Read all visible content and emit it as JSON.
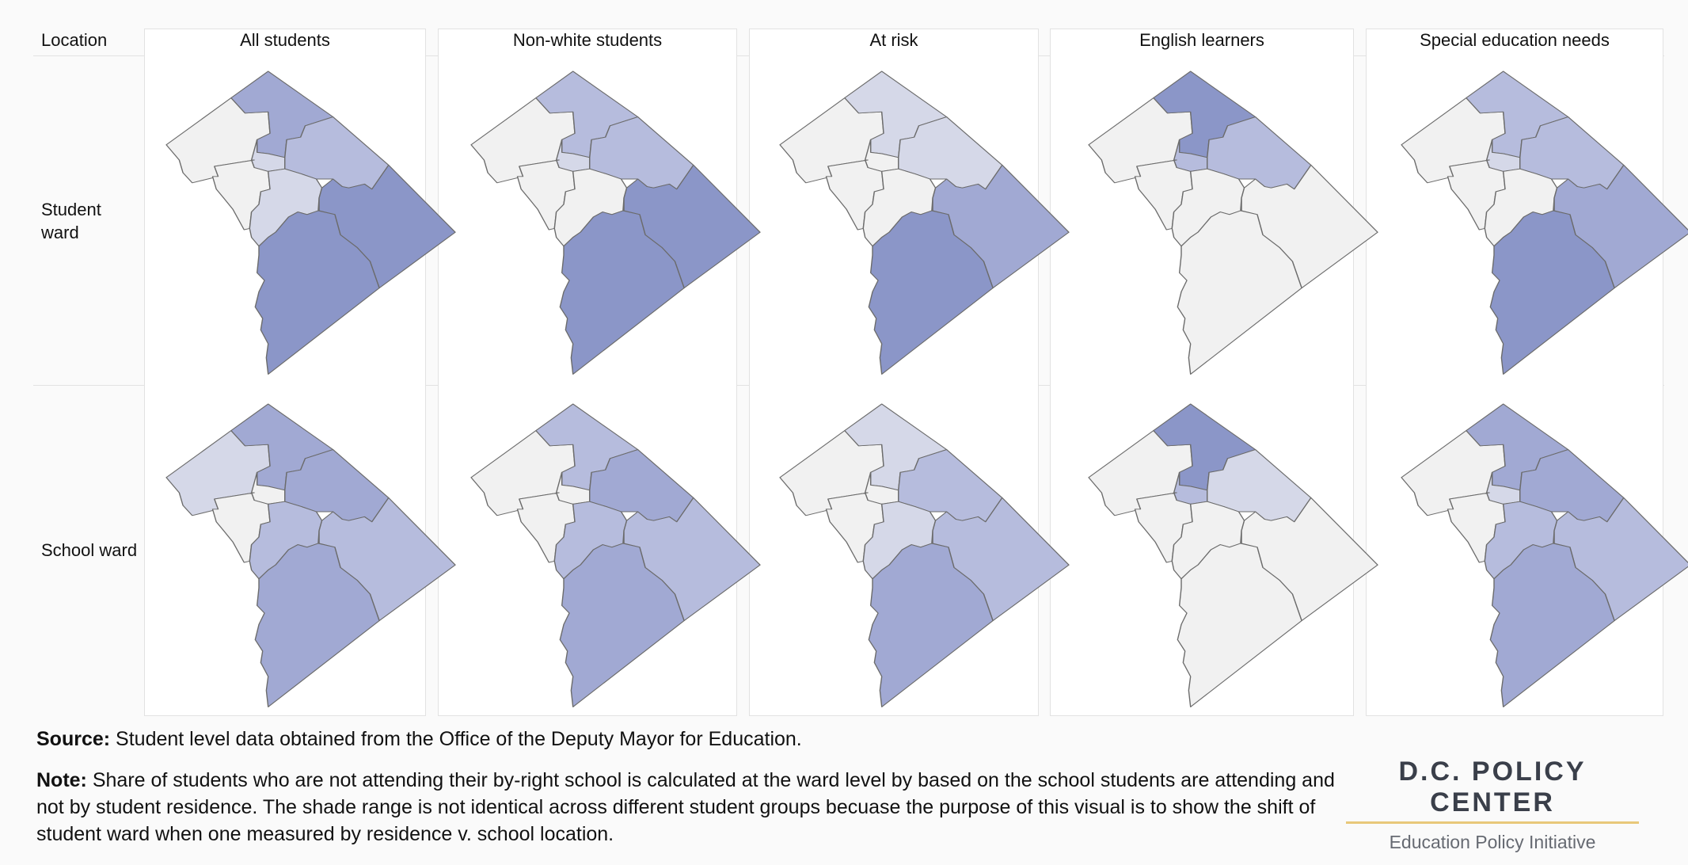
{
  "header": {
    "location_label": "Location",
    "columns": [
      "All students",
      "Non-white students",
      "At risk",
      "English learners",
      "Special education needs"
    ]
  },
  "rows": [
    {
      "label": "Student\nward"
    },
    {
      "label": "School ward"
    }
  ],
  "colors": {
    "level0": "#f1f1f1",
    "level1": "#d5d8e8",
    "level2": "#b6bcdd",
    "level3": "#a1a9d3",
    "level4": "#8b96c8",
    "border": "#6b6b6b"
  },
  "map_shading": [
    [
      {
        "northwest": 0,
        "north": 3,
        "center": 1,
        "northeast": 2,
        "west_central": 0,
        "south_central": 1,
        "east": 4,
        "southeast": 4
      },
      {
        "northwest": 0,
        "north": 2,
        "center": 1,
        "northeast": 2,
        "west_central": 0,
        "south_central": 0,
        "east": 4,
        "southeast": 4
      },
      {
        "northwest": 0,
        "north": 1,
        "center": 0,
        "northeast": 1,
        "west_central": 0,
        "south_central": 0,
        "east": 3,
        "southeast": 4
      },
      {
        "northwest": 0,
        "north": 4,
        "center": 2,
        "northeast": 2,
        "west_central": 0,
        "south_central": 0,
        "east": 0,
        "southeast": 0
      },
      {
        "northwest": 0,
        "north": 2,
        "center": 1,
        "northeast": 2,
        "west_central": 0,
        "south_central": 0,
        "east": 3,
        "southeast": 4
      }
    ],
    [
      {
        "northwest": 1,
        "north": 3,
        "center": 0,
        "northeast": 3,
        "west_central": 0,
        "south_central": 2,
        "east": 2,
        "southeast": 3
      },
      {
        "northwest": 0,
        "north": 2,
        "center": 0,
        "northeast": 3,
        "west_central": 0,
        "south_central": 2,
        "east": 2,
        "southeast": 3
      },
      {
        "northwest": 0,
        "north": 1,
        "center": 0,
        "northeast": 2,
        "west_central": 0,
        "south_central": 1,
        "east": 2,
        "southeast": 3
      },
      {
        "northwest": 0,
        "north": 4,
        "center": 2,
        "northeast": 1,
        "west_central": 0,
        "south_central": 0,
        "east": 0,
        "southeast": 0
      },
      {
        "northwest": 0,
        "north": 3,
        "center": 1,
        "northeast": 3,
        "west_central": 0,
        "south_central": 2,
        "east": 2,
        "southeast": 3
      }
    ]
  ],
  "footer": {
    "source_label": "Source:",
    "source_text": " Student level data obtained from the Office of the Deputy Mayor for Education.",
    "note_label": "Note:",
    "note_text": " Share of students who are not attending their by-right school is calculated at the ward level by based on the school students are attending and not by student residence. The shade range is not identical across different student groups becuase the purpose of this visual is to show the shift of student ward when one measured by residence v. school location."
  },
  "brand": {
    "name": "D.C. POLICY CENTER",
    "subtitle": "Education Policy Initiative"
  }
}
